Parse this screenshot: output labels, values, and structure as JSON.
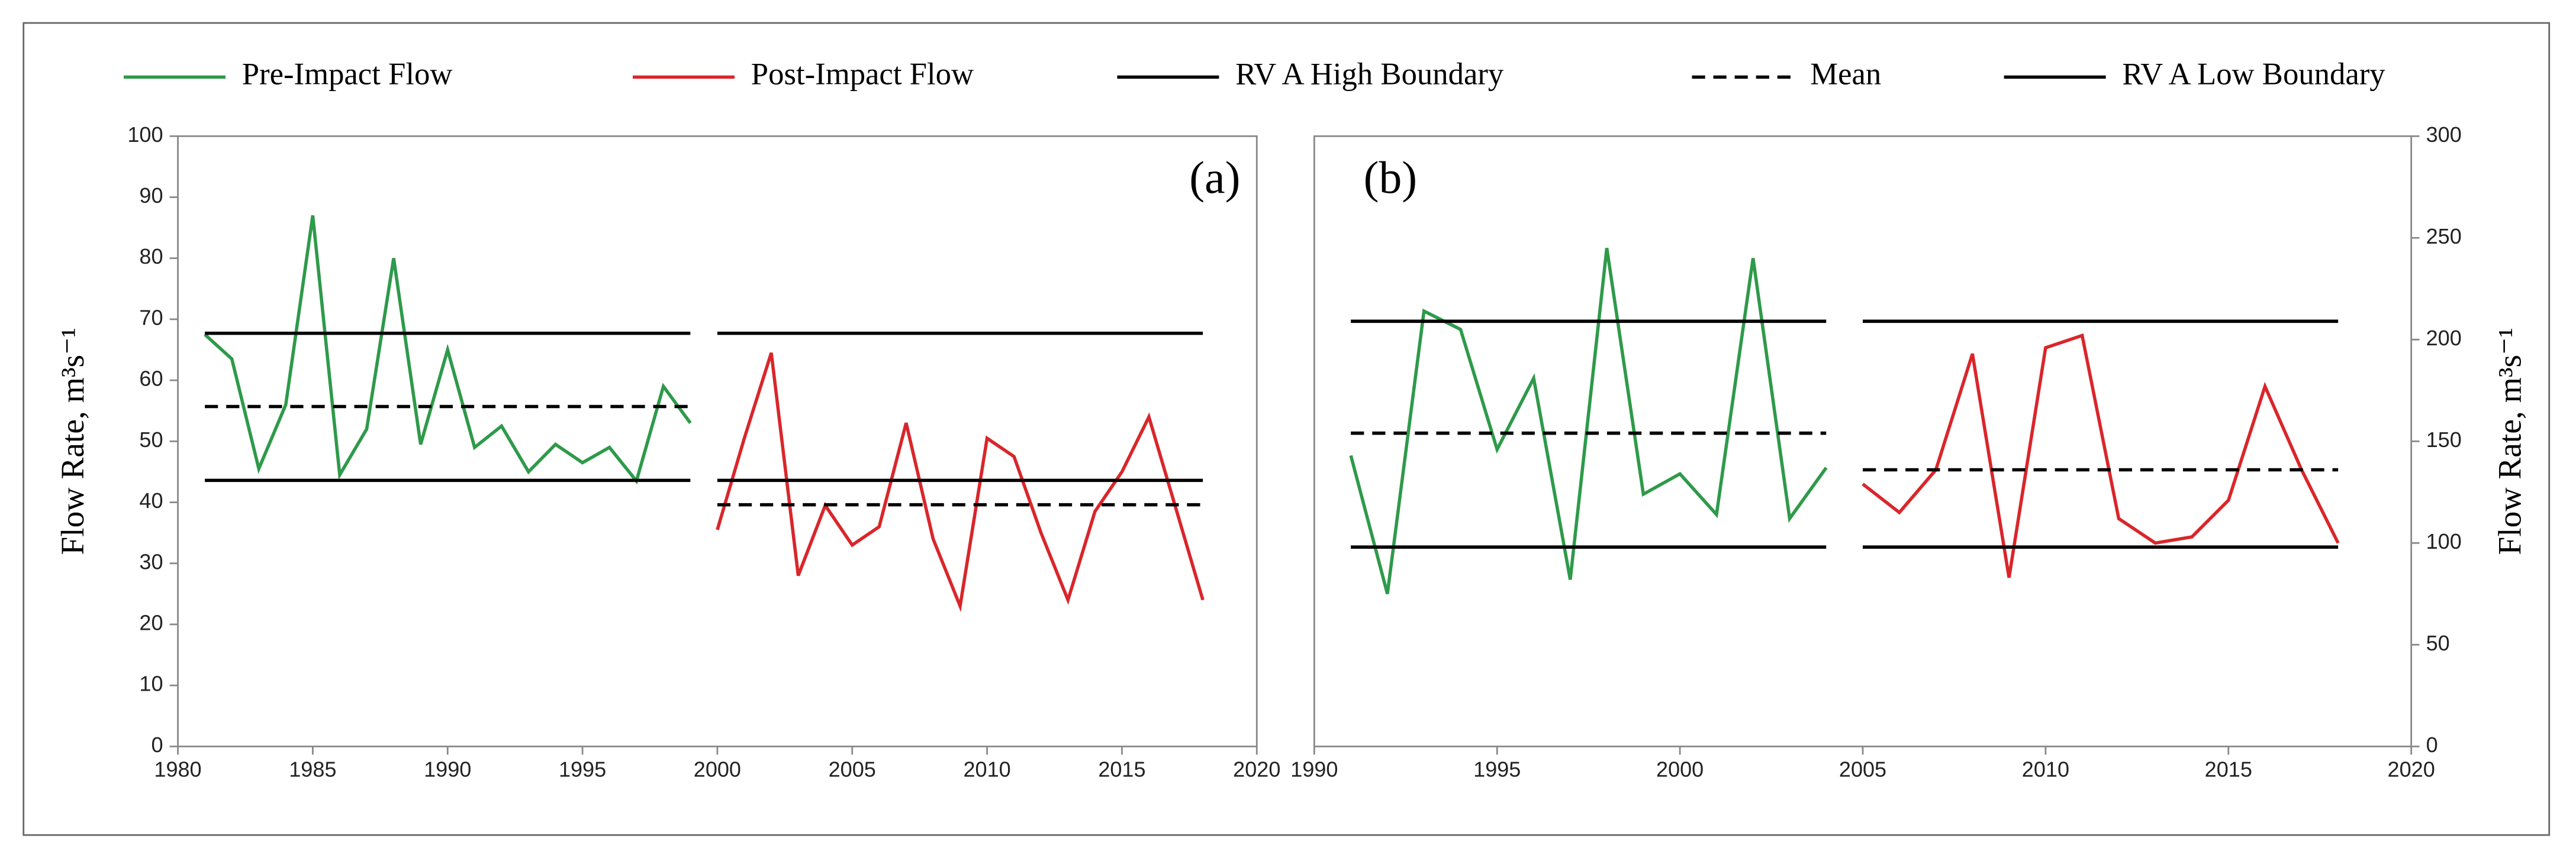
{
  "chart_data": [
    {
      "type": "line",
      "title": "(a)",
      "ylabel": "Flow Rate, m³s⁻¹",
      "xlim": [
        1980,
        2020
      ],
      "xticks": [
        1980,
        1985,
        1990,
        1995,
        2000,
        2005,
        2010,
        2015,
        2020
      ],
      "ylim": [
        0,
        100
      ],
      "yticks": [
        0,
        10,
        20,
        30,
        40,
        50,
        60,
        70,
        80,
        90,
        100
      ],
      "legend": "top",
      "series": [
        {
          "name": "Pre-Impact Flow",
          "color": "#2e9a4a",
          "dash": false,
          "x": [
            1981,
            1982,
            1983,
            1984,
            1985,
            1986,
            1987,
            1988,
            1989,
            1990,
            1991,
            1992,
            1993,
            1994,
            1995,
            1996,
            1997,
            1998,
            1999
          ],
          "values": [
            67.5,
            63.5,
            45.5,
            56,
            87,
            44.5,
            52,
            80,
            49.5,
            65,
            49,
            52.5,
            45,
            49.5,
            46.5,
            49,
            43.5,
            59,
            53
          ]
        },
        {
          "name": "Post-Impact Flow",
          "color": "#d9262b",
          "dash": false,
          "x": [
            2000,
            2001,
            2002,
            2003,
            2004,
            2005,
            2006,
            2007,
            2008,
            2009,
            2010,
            2011,
            2012,
            2013,
            2014,
            2015,
            2016,
            2017,
            2018
          ],
          "values": [
            35.5,
            50.5,
            64.5,
            28,
            39.5,
            33,
            36,
            53,
            34,
            23,
            50.5,
            47.5,
            35,
            24,
            38.5,
            45,
            54,
            39,
            24
          ]
        },
        {
          "name": "RV A High Boundary",
          "color": "#000000",
          "dash": false,
          "x": [
            1981,
            1999,
            null,
            2000,
            2018
          ],
          "values": [
            67.7,
            67.7,
            null,
            67.7,
            67.7
          ]
        },
        {
          "name": "Mean",
          "color": "#000000",
          "dash": true,
          "x": [
            1981,
            1999,
            null,
            2000,
            2018
          ],
          "values": [
            55.7,
            55.7,
            null,
            39.6,
            39.6
          ]
        },
        {
          "name": "RV A Low Boundary",
          "color": "#000000",
          "dash": false,
          "x": [
            1981,
            1999,
            null,
            2000,
            2018
          ],
          "values": [
            43.6,
            43.6,
            null,
            43.6,
            43.6
          ]
        }
      ]
    },
    {
      "type": "line",
      "title": "(b)",
      "y2label": "Flow Rate, m³s⁻¹",
      "xlim": [
        1990,
        2020
      ],
      "xticks": [
        1990,
        1995,
        2000,
        2005,
        2010,
        2015,
        2020
      ],
      "y2lim": [
        0,
        300
      ],
      "y2ticks": [
        0,
        50,
        100,
        150,
        200,
        250,
        300
      ],
      "series": [
        {
          "color": "#2e9a4a",
          "dash": false,
          "axis": "y2",
          "x": [
            1991,
            1992,
            1993,
            1994,
            1995,
            1996,
            1997,
            1998,
            1999,
            2000,
            2001,
            2002,
            2003,
            2004
          ],
          "values": [
            143,
            75,
            214,
            205,
            146,
            181,
            82,
            245,
            124,
            134,
            114,
            240,
            112,
            137
          ]
        },
        {
          "color": "#d9262b",
          "dash": false,
          "axis": "y2",
          "x": [
            2005,
            2006,
            2007,
            2008,
            2009,
            2010,
            2011,
            2012,
            2013,
            2014,
            2015,
            2016,
            2017,
            2018
          ],
          "values": [
            129,
            115,
            136,
            193,
            83,
            196,
            202,
            112,
            100,
            103,
            121,
            177,
            136,
            100
          ]
        },
        {
          "color": "#000000",
          "dash": false,
          "axis": "y2",
          "x": [
            1991,
            2004,
            null,
            2005,
            2018
          ],
          "values": [
            209,
            209,
            null,
            209,
            209
          ]
        },
        {
          "color": "#000000",
          "dash": true,
          "axis": "y2",
          "x": [
            1991,
            2004,
            null,
            2005,
            2018
          ],
          "values": [
            154,
            154,
            null,
            136,
            136
          ]
        },
        {
          "color": "#000000",
          "dash": false,
          "axis": "y2",
          "x": [
            1991,
            2004,
            null,
            2005,
            2018
          ],
          "values": [
            98,
            98,
            null,
            98,
            98
          ]
        }
      ]
    }
  ]
}
